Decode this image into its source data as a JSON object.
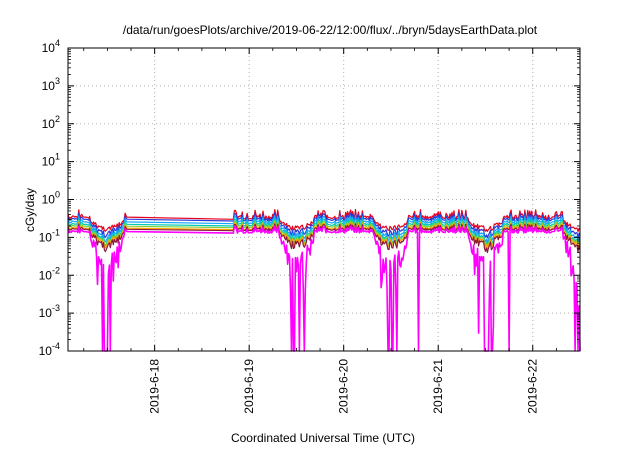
{
  "chart_data": {
    "type": "line",
    "title": "/data/run/goesPlots/archive/2019-06-22/12:00/flux/../bryn/5daysEarthData.plot",
    "xlabel": "Coordinated Universal Time (UTC)",
    "ylabel": "cGy/day",
    "yscale": "log",
    "ylim": [
      0.0001,
      10000
    ],
    "xlim": [
      "2019-06-17T02:00",
      "2019-06-22T12:00"
    ],
    "grid": true,
    "legend": "none",
    "y_ticks": [
      {
        "value": 0.0001,
        "base": "10",
        "exp": "-4"
      },
      {
        "value": 0.001,
        "base": "10",
        "exp": "-3"
      },
      {
        "value": 0.01,
        "base": "10",
        "exp": "-2"
      },
      {
        "value": 0.1,
        "base": "10",
        "exp": "-1"
      },
      {
        "value": 1,
        "base": "10",
        "exp": "0"
      },
      {
        "value": 10,
        "base": "10",
        "exp": "1"
      },
      {
        "value": 100,
        "base": "10",
        "exp": "2"
      },
      {
        "value": 1000,
        "base": "10",
        "exp": "3"
      },
      {
        "value": 10000,
        "base": "10",
        "exp": "4"
      }
    ],
    "x_ticks": [
      {
        "value": "2019-06-18T00:00",
        "label": "2019-6-18"
      },
      {
        "value": "2019-06-19T00:00",
        "label": "2019-6-19"
      },
      {
        "value": "2019-06-20T00:00",
        "label": "2019-6-20"
      },
      {
        "value": "2019-06-21T00:00",
        "label": "2019-6-21"
      },
      {
        "value": "2019-06-22T00:00",
        "label": "2019-6-22"
      }
    ],
    "data_gap": [
      "2019-06-17T17:00",
      "2019-06-18T20:00"
    ],
    "dropouts": [
      {
        "time": "2019-06-20T19:00",
        "series": "magenta"
      },
      {
        "time": "2019-06-21T18:00",
        "series": "magenta"
      }
    ],
    "series": [
      {
        "color": "#e8001c",
        "level": 0.3,
        "trough": 0.2,
        "peak": 0.55
      },
      {
        "color": "#2a3bd6",
        "level": 0.27,
        "trough": 0.16,
        "peak": 0.45
      },
      {
        "color": "#15a6ff",
        "level": 0.23,
        "trough": 0.13,
        "peak": 0.38
      },
      {
        "color": "#00c8b4",
        "level": 0.2,
        "trough": 0.11,
        "peak": 0.32
      },
      {
        "color": "#7ed13a",
        "level": 0.18,
        "trough": 0.1,
        "peak": 0.28
      },
      {
        "color": "#ffa500",
        "level": 0.16,
        "trough": 0.09,
        "peak": 0.25
      },
      {
        "color": "#8b1a3a",
        "level": 0.15,
        "trough": 0.08,
        "peak": 0.23
      },
      {
        "color": "#ff00ff",
        "level": 0.13,
        "trough": 0.03,
        "peak": 0.2
      }
    ]
  }
}
